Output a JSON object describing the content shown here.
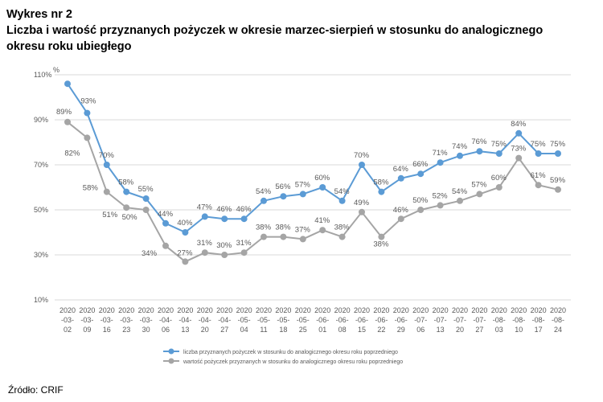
{
  "heading": {
    "label": "Wykres nr 2",
    "title_line1": "Liczba i wartość przyznanych pożyczek w okresie marzec-sierpień w stosunku do analogicznego",
    "title_line2": "okresu roku ubiegłego"
  },
  "source": "Źródło: CRIF",
  "colors": {
    "series1": "#5b9bd5",
    "series2": "#a5a5a5",
    "grid": "#d9d9d9",
    "text": "#595959"
  },
  "chart_data": {
    "type": "line",
    "y_unit_label": "%",
    "ylim": [
      10,
      110
    ],
    "yticks": [
      "10%",
      "30%",
      "50%",
      "70%",
      "90%",
      "110%"
    ],
    "grid": true,
    "legend_position": "bottom",
    "x": [
      [
        "2020",
        "-03-",
        "02"
      ],
      [
        "2020",
        "-03-",
        "09"
      ],
      [
        "2020",
        "-03-",
        "16"
      ],
      [
        "2020",
        "-03-",
        "23"
      ],
      [
        "2020",
        "-03-",
        "30"
      ],
      [
        "2020",
        "-04-",
        "06"
      ],
      [
        "2020",
        "-04-",
        "13"
      ],
      [
        "2020",
        "-04-",
        "20"
      ],
      [
        "2020",
        "-04-",
        "27"
      ],
      [
        "2020",
        "-05-",
        "04"
      ],
      [
        "2020",
        "-05-",
        "11"
      ],
      [
        "2020",
        "-05-",
        "18"
      ],
      [
        "2020",
        "-05-",
        "25"
      ],
      [
        "2020",
        "-06-",
        "01"
      ],
      [
        "2020",
        "-06-",
        "08"
      ],
      [
        "2020",
        "-06-",
        "15"
      ],
      [
        "2020",
        "-06-",
        "22"
      ],
      [
        "2020",
        "-06-",
        "29"
      ],
      [
        "2020",
        "-07-",
        "06"
      ],
      [
        "2020",
        "-07-",
        "13"
      ],
      [
        "2020",
        "-07-",
        "20"
      ],
      [
        "2020",
        "-07-",
        "27"
      ],
      [
        "2020",
        "-08-",
        "03"
      ],
      [
        "2020",
        "-08-",
        "10"
      ],
      [
        "2020",
        "-08-",
        "17"
      ],
      [
        "2020",
        "-08-",
        "24"
      ]
    ],
    "series": [
      {
        "name": "liczba przyznanych pożyczek w stosunku do analogicznego okresu roku poprzedniego",
        "values": [
          106,
          93,
          70,
          58,
          55,
          44,
          40,
          47,
          46,
          46,
          54,
          56,
          57,
          60,
          54,
          70,
          58,
          64,
          66,
          71,
          74,
          76,
          75,
          84,
          75,
          75
        ],
        "labels": [
          "",
          "93%",
          "70%",
          "58%",
          "55%",
          "44%",
          "40%",
          "47%",
          "46%",
          "46%",
          "54%",
          "56%",
          "57%",
          "60%",
          "54%",
          "70%",
          "58%",
          "64%",
          "66%",
          "71%",
          "74%",
          "76%",
          "75%",
          "84%",
          "75%",
          "75%"
        ]
      },
      {
        "name": "wartość pożyczek przyznanych w stosunku do analogicznego okresu roku poprzedniego",
        "values": [
          89,
          82,
          58,
          51,
          50,
          34,
          27,
          31,
          30,
          31,
          38,
          38,
          37,
          41,
          38,
          49,
          38,
          46,
          50,
          52,
          54,
          57,
          60,
          73,
          61,
          59
        ],
        "labels": [
          "89%",
          "82%",
          "58%",
          "51%",
          "50%",
          "34%",
          "27%",
          "31%",
          "30%",
          "31%",
          "38%",
          "38%",
          "37%",
          "41%",
          "38%",
          "49%",
          "38%",
          "46%",
          "50%",
          "52%",
          "54%",
          "57%",
          "60%",
          "73%",
          "61%",
          "59%"
        ]
      }
    ]
  }
}
